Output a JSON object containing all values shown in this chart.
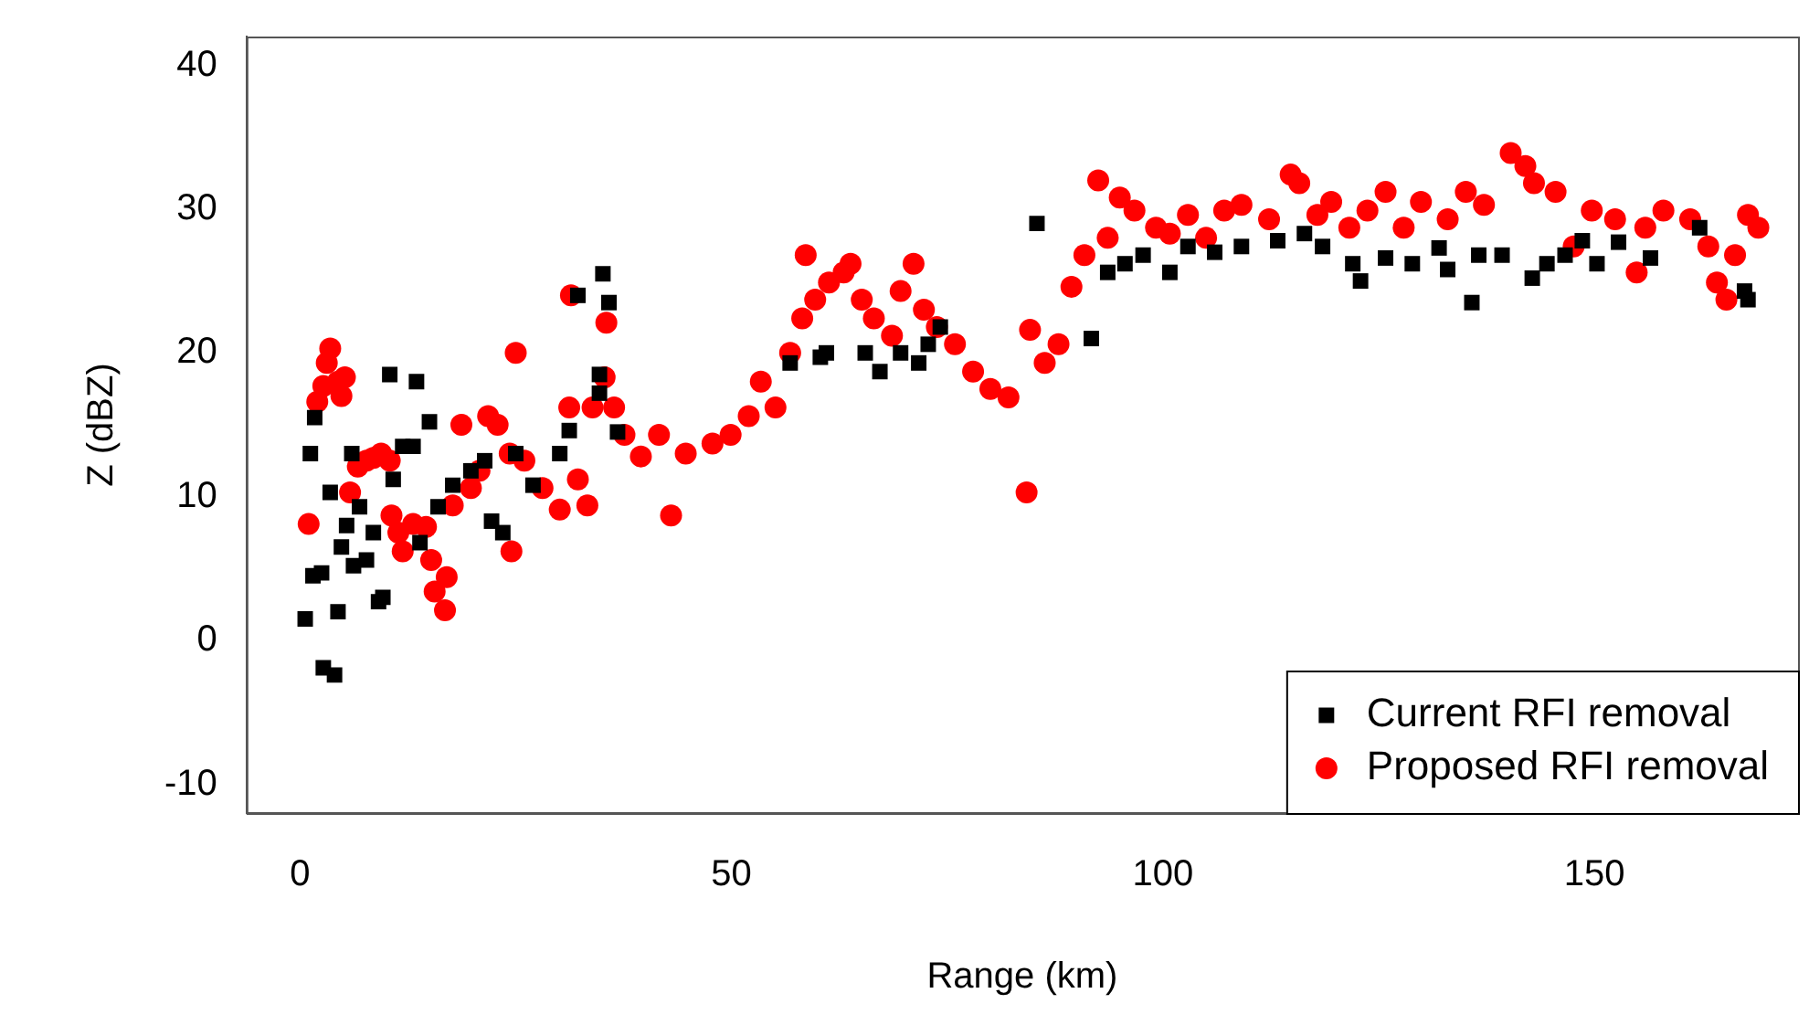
{
  "chart_data": {
    "type": "scatter",
    "xlabel": "Range (km)",
    "ylabel": "Z (dBZ)",
    "xlim": [
      -6.2,
      173.6
    ],
    "ylim": [
      -12,
      42
    ],
    "xticks": [
      0,
      50,
      100,
      150
    ],
    "yticks": [
      -10,
      0,
      10,
      20,
      30,
      40
    ],
    "grid": false,
    "legend": "bottom right",
    "series": [
      {
        "name": "Current RFI removal",
        "color": "#000000",
        "marker": "square",
        "x": [
          0.6,
          1.2,
          1.7,
          1.5,
          2.5,
          2.7,
          4,
          3.5,
          4.4,
          4.8,
          5.4,
          6,
          6.2,
          6.9,
          7.7,
          8.5,
          9.1,
          9.6,
          10.4,
          10.8,
          11.9,
          13.1,
          13.5,
          13.9,
          15,
          16,
          17.7,
          19.8,
          21.4,
          22.2,
          23.5,
          25,
          27,
          30.1,
          31.2,
          32.2,
          34.7,
          35.1,
          35.8,
          34.7,
          36.8,
          56.8,
          60.3,
          61,
          65.5,
          67.2,
          69.6,
          71.7,
          72.8,
          74.2,
          85.4,
          91.7,
          93.6,
          95.6,
          97.7,
          100.8,
          102.9,
          106,
          109.1,
          113.3,
          116.4,
          118.5,
          122,
          122.9,
          125.8,
          128.9,
          132,
          133,
          135.8,
          136.6,
          139.3,
          142.8,
          144.5,
          146.6,
          148.6,
          150.3,
          152.8,
          156.5,
          162.2,
          167.8,
          167.4
        ],
        "values": [
          1.5,
          13,
          15.5,
          4.5,
          4.7,
          -1.9,
          -2.4,
          10.3,
          2,
          6.5,
          8,
          13,
          5.2,
          9.3,
          5.6,
          7.5,
          2.7,
          3,
          18.5,
          11.2,
          13.5,
          13.5,
          18,
          6.8,
          15.2,
          9.3,
          10.8,
          11.8,
          12.5,
          8.3,
          7.5,
          13,
          10.8,
          13,
          14.6,
          24,
          17.2,
          25.5,
          23.5,
          18.5,
          14.5,
          19.3,
          19.7,
          20,
          20,
          18.7,
          20,
          19.3,
          20.6,
          21.8,
          29,
          21,
          25.6,
          26.2,
          26.8,
          25.6,
          27.4,
          27,
          27.4,
          27.8,
          28.3,
          27.4,
          26.2,
          25,
          26.6,
          26.2,
          27.3,
          25.8,
          23.5,
          26.8,
          26.8,
          25.2,
          26.2,
          26.8,
          27.8,
          26.2,
          27.7,
          26.6,
          28.7,
          23.7,
          24.3
        ]
      },
      {
        "name": "Proposed RFI removal",
        "color": "#ff0000",
        "marker": "circle",
        "x": [
          1,
          2,
          3.1,
          3.5,
          2.7,
          4.4,
          4.8,
          5.2,
          5.8,
          6.7,
          7.7,
          8.5,
          9.4,
          10.4,
          10.6,
          11.4,
          11.9,
          13.1,
          14.6,
          15.2,
          15.6,
          16.8,
          17,
          17.7,
          18.7,
          19.8,
          20.8,
          21.8,
          22.9,
          24.3,
          25,
          24.5,
          26,
          28.1,
          30.1,
          31.2,
          32.2,
          31.4,
          33.3,
          33.9,
          35.3,
          35.5,
          36.4,
          37.6,
          39.5,
          41.6,
          43,
          44.7,
          47.8,
          49.9,
          52,
          53.4,
          55.1,
          56.8,
          58.2,
          58.6,
          59.7,
          61.3,
          63,
          63.8,
          65.1,
          66.5,
          68.6,
          69.6,
          71.1,
          72.3,
          73.8,
          75.9,
          78,
          80,
          82.1,
          84.2,
          84.6,
          86.3,
          87.9,
          89.4,
          90.9,
          92.5,
          93.6,
          95,
          96.7,
          99.2,
          100.8,
          102.9,
          105,
          107.1,
          109.1,
          112.3,
          114.8,
          115.8,
          117.9,
          119.5,
          121.6,
          123.7,
          125.8,
          127.9,
          129.9,
          133,
          135.1,
          137.2,
          140.3,
          142,
          143,
          145.5,
          147.6,
          149.7,
          152.4,
          154.9,
          155.9,
          158,
          161.1,
          163.2,
          164.2,
          165.3,
          166.3,
          167.8,
          169
        ],
        "values": [
          8.1,
          16.6,
          19.3,
          20.3,
          17.7,
          18,
          17,
          18.3,
          10.3,
          12.1,
          12.5,
          12.7,
          13,
          12.5,
          8.7,
          7.5,
          6.2,
          8.1,
          7.9,
          5.6,
          3.4,
          2.1,
          4.4,
          9.4,
          15,
          10.6,
          11.8,
          15.6,
          15,
          13,
          20,
          6.2,
          12.5,
          10.6,
          9.1,
          16.2,
          11.2,
          24,
          9.4,
          16.2,
          18.3,
          22.1,
          16.2,
          14.3,
          12.8,
          14.3,
          8.7,
          13,
          13.7,
          14.3,
          15.6,
          18,
          16.2,
          20,
          22.4,
          26.8,
          23.7,
          24.9,
          25.6,
          26.2,
          23.7,
          22.4,
          21.2,
          24.3,
          26.2,
          23,
          21.8,
          20.6,
          18.7,
          17.5,
          16.9,
          10.3,
          21.6,
          19.3,
          20.6,
          24.6,
          26.8,
          32,
          28,
          30.8,
          29.9,
          28.7,
          28.3,
          29.6,
          28,
          29.9,
          30.3,
          29.3,
          32.4,
          31.8,
          29.6,
          30.5,
          28.7,
          29.9,
          31.2,
          28.7,
          30.5,
          29.3,
          31.2,
          30.3,
          33.9,
          33,
          31.8,
          31.2,
          27.4,
          29.9,
          29.3,
          25.6,
          28.7,
          29.9,
          29.3,
          27.4,
          24.9,
          23.7,
          26.8,
          29.6,
          28.7
        ]
      }
    ]
  }
}
